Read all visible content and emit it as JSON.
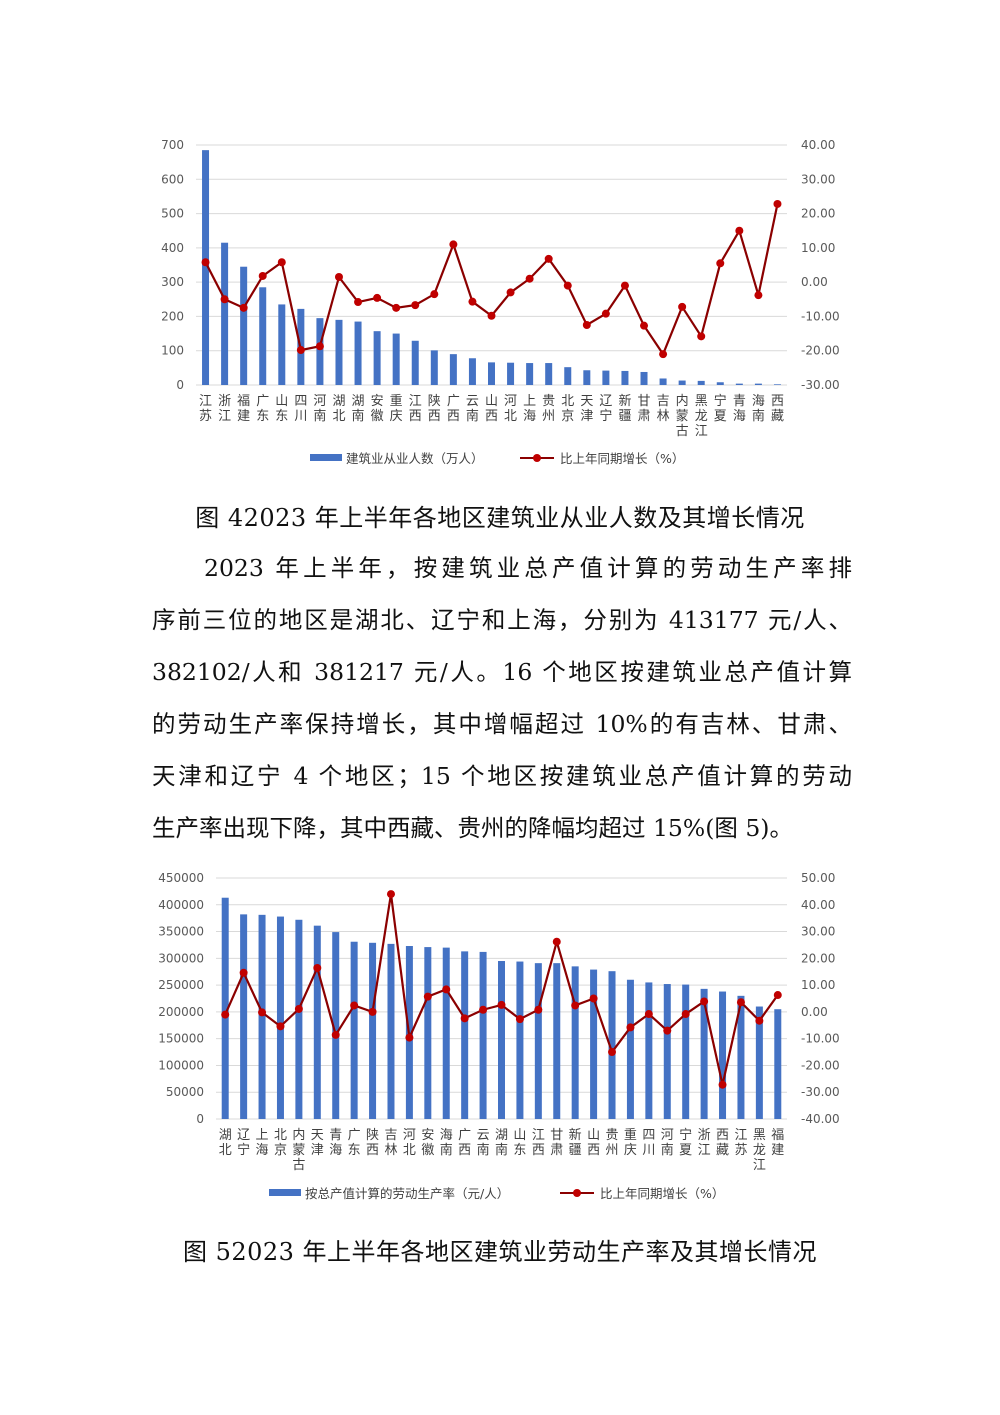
{
  "figure4": {
    "caption": "图 42023 年上半年各地区建筑业从业人数及其增长情况"
  },
  "paragraph": {
    "lines": [
      "2023 年上半年，按建筑业总产值计算的劳动生产率排",
      "序前三位的地区是湖北、辽宁和上海，分别为 413177 元/人、",
      "382102/人和 381217 元/人。16 个地区按建筑业总产值计算",
      "的劳动生产率保持增长，其中增幅超过 10%的有吉林、甘肃、",
      "天津和辽宁 4 个地区；15 个地区按建筑业总产值计算的劳动",
      "生产率出现下降，其中西藏、贵州的降幅均超过 15%(图 5)。"
    ]
  },
  "figure5": {
    "caption": "图 52023 年上半年各地区建筑业劳动生产率及其增长情况"
  },
  "chart_data": [
    {
      "type": "bar+line",
      "categories": [
        "江苏",
        "浙江",
        "福建",
        "广东",
        "山东",
        "四川",
        "河南",
        "湖北",
        "湖南",
        "安徽",
        "重庆",
        "江西",
        "陕西",
        "广西",
        "云南",
        "山西",
        "河北",
        "上海",
        "贵州",
        "北京",
        "天津",
        "辽宁",
        "新疆",
        "甘肃",
        "吉林",
        "内蒙古",
        "黑龙江",
        "宁夏",
        "青海",
        "海南",
        "西藏"
      ],
      "series": [
        {
          "name": "建筑业从业人数（万人）",
          "type": "bar",
          "axis": "left",
          "color": "#4472C4",
          "values": [
            685,
            415,
            345,
            285,
            235,
            222,
            195,
            190,
            185,
            157,
            150,
            129,
            101,
            90,
            78,
            66,
            65,
            64,
            64,
            52,
            43,
            42,
            41,
            38,
            19,
            13,
            12,
            8,
            4,
            4,
            2
          ]
        },
        {
          "name": "比上年同期增长（%）",
          "type": "line",
          "axis": "right",
          "color": "#8B0000",
          "marker_color": "#C00000",
          "values": [
            5.8,
            -5.0,
            -7.5,
            1.8,
            5.8,
            -19.8,
            -18.7,
            1.5,
            -5.8,
            -4.6,
            -7.5,
            -6.7,
            -3.5,
            11.0,
            -5.7,
            -9.8,
            -3.0,
            1.0,
            6.8,
            -1.0,
            -12.5,
            -9.2,
            -1.0,
            -12.7,
            -21.0,
            -7.2,
            -15.8,
            5.5,
            15.0,
            -3.8,
            22.8
          ]
        }
      ],
      "left_axis": {
        "min": 0,
        "max": 700,
        "step": 100,
        "ticks": [
          "0",
          "100",
          "200",
          "300",
          "400",
          "500",
          "600",
          "700"
        ]
      },
      "right_axis": {
        "min": -30,
        "max": 40,
        "step": 10,
        "ticks": [
          "-30.00",
          "-20.00",
          "-10.00",
          "0.00",
          "10.00",
          "20.00",
          "30.00",
          "40.00"
        ]
      },
      "grid": true,
      "legend_position": "bottom"
    },
    {
      "type": "bar+line",
      "categories": [
        "湖北",
        "辽宁",
        "上海",
        "北京",
        "内蒙古",
        "天津",
        "青海",
        "广东",
        "陕西",
        "吉林",
        "河北",
        "安徽",
        "海南",
        "广西",
        "云南",
        "湖南",
        "山东",
        "江西",
        "甘肃",
        "新疆",
        "山西",
        "贵州",
        "重庆",
        "四川",
        "河南",
        "宁夏",
        "浙江",
        "西藏",
        "江苏",
        "黑龙江",
        "福建"
      ],
      "series": [
        {
          "name": "按总产值计算的劳动生产率（元/人）",
          "type": "bar",
          "axis": "left",
          "color": "#4472C4",
          "values": [
            413177,
            382102,
            381217,
            378000,
            372000,
            361000,
            349000,
            331000,
            329000,
            327000,
            323000,
            321000,
            320000,
            313000,
            312000,
            295000,
            294000,
            291000,
            291000,
            285000,
            279000,
            276000,
            260000,
            255000,
            252000,
            251000,
            243000,
            238000,
            230000,
            210000,
            205000
          ]
        },
        {
          "name": "比上年同期增长（%）",
          "type": "line",
          "axis": "right",
          "color": "#8B0000",
          "marker_color": "#C00000",
          "values": [
            -1.0,
            14.6,
            -0.2,
            -5.4,
            1.1,
            16.4,
            -8.6,
            2.4,
            0.0,
            44.0,
            -9.6,
            5.7,
            8.4,
            -2.4,
            0.8,
            2.6,
            -2.7,
            0.8,
            26.2,
            2.4,
            5.0,
            -15.0,
            -5.8,
            -0.8,
            -7.0,
            -0.8,
            3.9,
            -27.2,
            3.6,
            -3.3,
            6.3
          ]
        }
      ],
      "left_axis": {
        "min": 0,
        "max": 450000,
        "step": 50000,
        "ticks": [
          "0",
          "50000",
          "100000",
          "150000",
          "200000",
          "250000",
          "300000",
          "350000",
          "400000",
          "450000"
        ]
      },
      "right_axis": {
        "min": -40,
        "max": 50,
        "step": 10,
        "ticks": [
          "-40.00",
          "-30.00",
          "-20.00",
          "-10.00",
          "0.00",
          "10.00",
          "20.00",
          "30.00",
          "40.00",
          "50.00"
        ]
      },
      "grid": true,
      "legend_position": "bottom"
    }
  ]
}
